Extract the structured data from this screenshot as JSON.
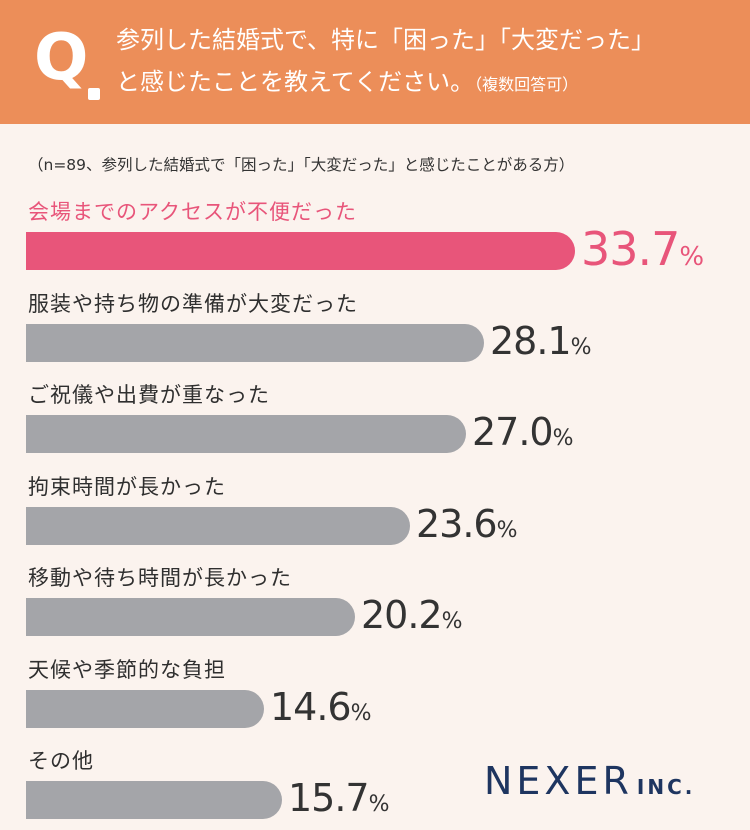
{
  "header": {
    "q_mark": "Q",
    "question_line1": "参列した結婚式で、特に「困った」「大変だった」",
    "question_line2": "と感じたことを教えてください。",
    "question_note": "（複数回答可）"
  },
  "sample_note": "（n=89、参列した結婚式で「困った」「大変だった」と感じたことがある方）",
  "chart_data": {
    "type": "bar",
    "orientation": "horizontal",
    "unit": "%",
    "categories": [
      "会場までのアクセスが不便だった",
      "服装や持ち物の準備が大変だった",
      "ご祝儀や出費が重なった",
      "拘束時間が長かった",
      "移動や待ち時間が長かった",
      "天候や季節的な負担",
      "その他"
    ],
    "values": [
      33.7,
      28.1,
      27.0,
      23.6,
      20.2,
      14.6,
      15.7
    ],
    "value_labels": [
      "33.7",
      "28.1",
      "27.0",
      "23.6",
      "20.2",
      "14.6",
      "15.7"
    ],
    "highlight_index": 0,
    "colors": {
      "highlight": "#e8557a",
      "default": "#a4a5a9",
      "header": "#ec8e59"
    }
  },
  "logo": {
    "main": "NEXER",
    "sub": "INC."
  }
}
